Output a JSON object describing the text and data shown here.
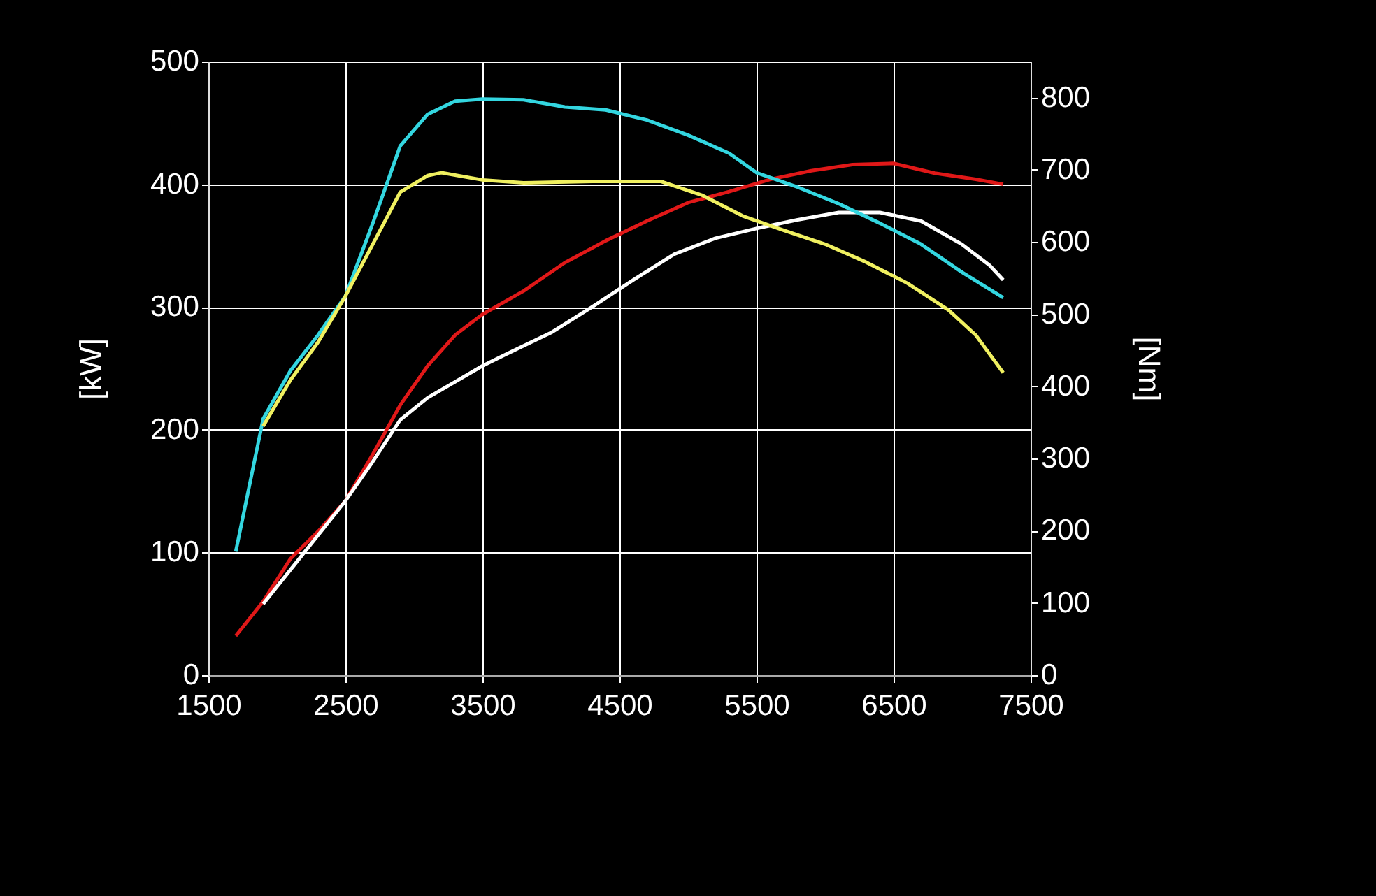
{
  "chart_data": {
    "type": "line",
    "ylabel": "[kW]",
    "y2label": "[Nm]",
    "xlim": [
      1500,
      7500
    ],
    "xticks": [
      1500,
      2500,
      3500,
      4500,
      5500,
      6500,
      7500
    ],
    "ylim": [
      0,
      500
    ],
    "yticks": [
      0,
      100,
      200,
      300,
      400,
      500
    ],
    "y2lim": [
      0,
      850
    ],
    "y2ticks": [
      0,
      100,
      200,
      300,
      400,
      500,
      600,
      700,
      800
    ],
    "grid": true,
    "legend": false,
    "marker": "none",
    "line_style": "solid",
    "series": [
      {
        "color": "#e01818",
        "x": [
          1700,
          1900,
          2100,
          2300,
          2500,
          2700,
          2900,
          3100,
          3300,
          3500,
          3800,
          4100,
          4400,
          4700,
          5000,
          5300,
          5600,
          5900,
          6200,
          6500,
          6800,
          7100,
          7300
        ],
        "values": [
          32,
          60,
          95,
          117,
          142,
          180,
          220,
          252,
          277,
          294,
          313,
          336,
          354,
          370,
          385,
          394,
          404,
          411,
          416,
          417,
          409,
          404,
          400
        ]
      },
      {
        "color": "#ffffff",
        "x": [
          1900,
          2200,
          2500,
          2700,
          2900,
          3100,
          3300,
          3500,
          3700,
          4000,
          4300,
          4600,
          4900,
          5200,
          5500,
          5800,
          6100,
          6400,
          6700,
          7000,
          7200,
          7300
        ],
        "values": [
          58,
          100,
          142,
          174,
          208,
          226,
          239,
          252,
          263,
          279,
          300,
          322,
          343,
          356,
          364,
          371,
          377,
          377,
          370,
          351,
          334,
          322
        ]
      },
      {
        "color": "#33d6e0",
        "axis": "y2",
        "x": [
          1700,
          1900,
          2100,
          2300,
          2500,
          2700,
          2900,
          3100,
          3300,
          3500,
          3800,
          4100,
          4400,
          4700,
          5000,
          5300,
          5500,
          5800,
          6100,
          6400,
          6700,
          7000,
          7300
        ],
        "values": [
          171,
          355,
          422,
          471,
          525,
          626,
          733,
          777,
          795,
          798,
          797,
          787,
          783,
          769,
          748,
          723,
          696,
          676,
          653,
          626,
          597,
          558,
          523
        ]
      },
      {
        "color": "#f0f060",
        "axis": "y2",
        "x": [
          1900,
          2100,
          2300,
          2500,
          2700,
          2900,
          3100,
          3200,
          3500,
          3800,
          4300,
          4800,
          5100,
          5400,
          5700,
          6000,
          6300,
          6600,
          6900,
          7100,
          7300
        ],
        "values": [
          345,
          409,
          461,
          525,
          597,
          669,
          692,
          696,
          686,
          682,
          684,
          684,
          665,
          636,
          616,
          597,
          572,
          543,
          506,
          471,
          419
        ]
      }
    ]
  }
}
